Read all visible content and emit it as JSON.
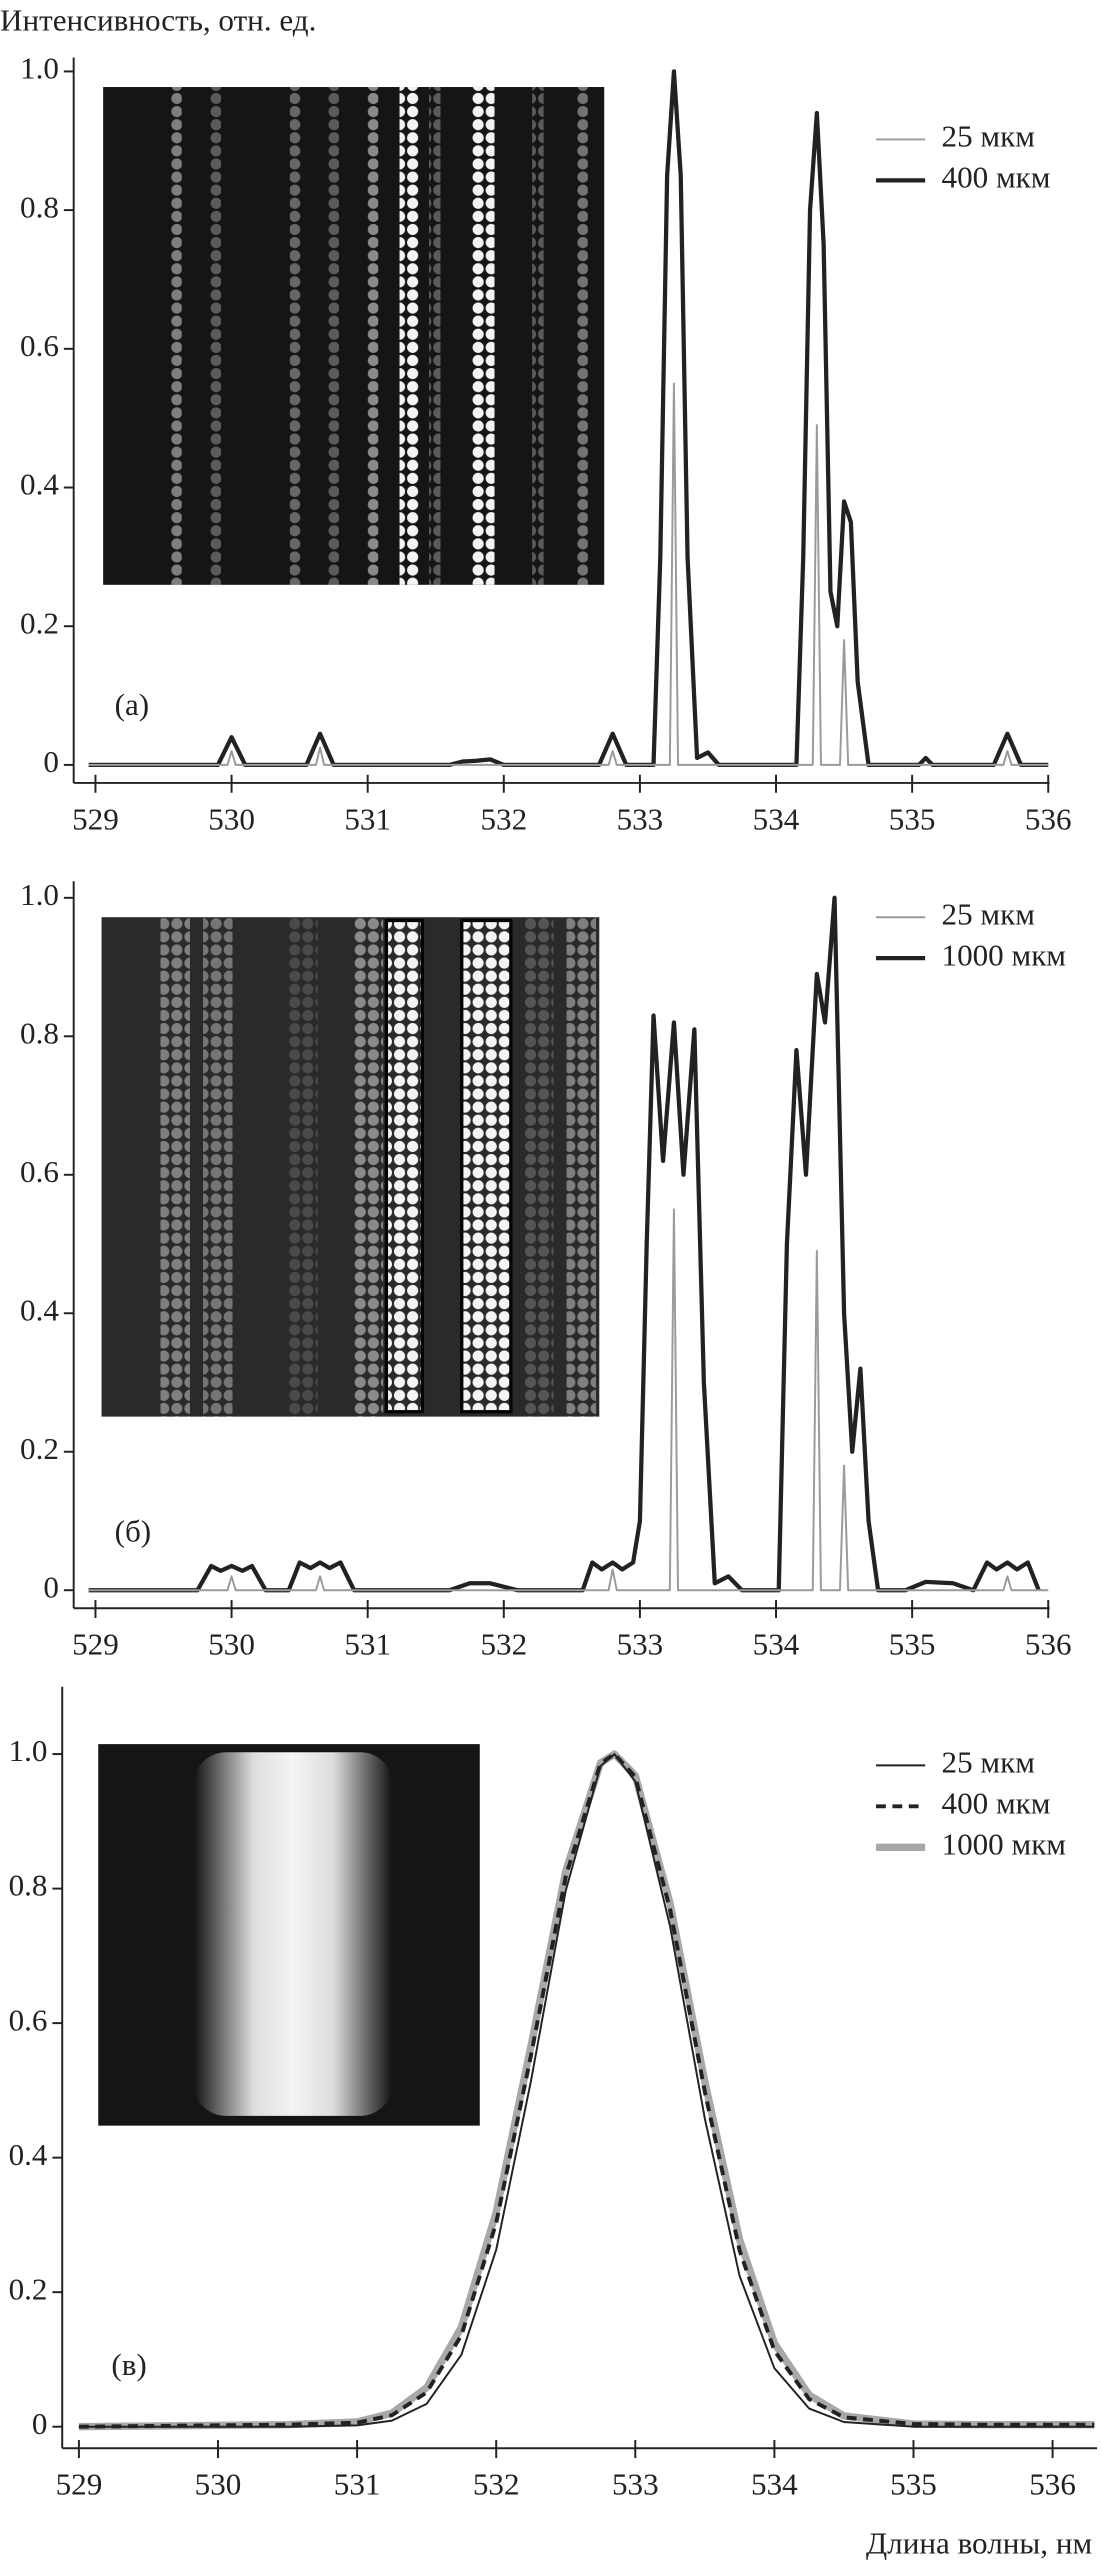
{
  "chart_data": [
    {
      "type": "line",
      "ylabel": "Интенсивность, отн. ед.",
      "annotation": "(a)",
      "legend": "upper right",
      "xlim": [
        528.84,
        536.01
      ],
      "ylim": [
        -0.026,
        1.02
      ],
      "xticks": [
        529,
        530,
        531,
        532,
        533,
        534,
        535,
        536
      ],
      "yticks": [
        0,
        0.2,
        0.4,
        0.6,
        0.8,
        {
          "value": 1,
          "label": "1.0"
        }
      ],
      "series": [
        {
          "name": "25 мкм",
          "color": "#9a9a9a",
          "width": 1.2,
          "x": [
            528.95,
            529.97,
            530.0,
            530.03,
            530.62,
            530.65,
            530.68,
            532.77,
            532.8,
            532.83,
            533.22,
            533.25,
            533.28,
            534.27,
            534.3,
            534.33,
            534.47,
            534.5,
            534.53,
            535.67,
            535.7,
            535.73,
            536.0
          ],
          "values": [
            0,
            0,
            0.02,
            0,
            0,
            0.025,
            0,
            0,
            0.02,
            0,
            0,
            0.55,
            0,
            0,
            0.49,
            0,
            0,
            0.18,
            0,
            0,
            0.02,
            0,
            0
          ]
        },
        {
          "name": "400 мкм",
          "color": "#222222",
          "width": 2.6,
          "x": [
            528.95,
            529.9,
            530.0,
            530.1,
            530.55,
            530.65,
            530.75,
            531.6,
            531.7,
            531.8,
            531.9,
            532.0,
            532.7,
            532.8,
            532.9,
            533.1,
            533.15,
            533.2,
            533.25,
            533.3,
            533.35,
            533.42,
            533.5,
            533.58,
            533.75,
            534.15,
            534.2,
            534.25,
            534.3,
            534.35,
            534.4,
            534.45,
            534.5,
            534.55,
            534.6,
            534.68,
            535.05,
            535.1,
            535.15,
            535.6,
            535.7,
            535.8,
            536.0
          ],
          "values": [
            0,
            0,
            0.04,
            0,
            0,
            0.045,
            0,
            0,
            0.005,
            0.006,
            0.008,
            0,
            0,
            0.045,
            0,
            0,
            0.3,
            0.85,
            1.0,
            0.85,
            0.3,
            0.01,
            0.018,
            0,
            0,
            0,
            0.3,
            0.8,
            0.94,
            0.75,
            0.25,
            0.2,
            0.38,
            0.35,
            0.12,
            0,
            0,
            0.01,
            0,
            0,
            0.045,
            0,
            0
          ]
        }
      ]
    },
    {
      "type": "line",
      "annotation": "(б)",
      "legend": "upper right",
      "xlim": [
        528.84,
        536.01
      ],
      "ylim": [
        -0.026,
        1.024
      ],
      "xticks": [
        529,
        530,
        531,
        532,
        533,
        534,
        535,
        536
      ],
      "yticks": [
        0,
        0.2,
        0.4,
        0.6,
        0.8,
        {
          "value": 1,
          "label": "1.0"
        }
      ],
      "series": [
        {
          "name": "25 мкм",
          "color": "#9a9a9a",
          "width": 1.2,
          "x": [
            528.95,
            529.97,
            530.0,
            530.03,
            530.62,
            530.65,
            530.68,
            532.77,
            532.8,
            532.83,
            533.22,
            533.25,
            533.28,
            534.27,
            534.3,
            534.33,
            534.47,
            534.5,
            534.53,
            535.67,
            535.7,
            535.73,
            536.0
          ],
          "values": [
            0,
            0,
            0.02,
            0,
            0,
            0.02,
            0,
            0,
            0.03,
            0,
            0,
            0.55,
            0,
            0,
            0.49,
            0,
            0,
            0.18,
            0,
            0,
            0.02,
            0,
            0
          ]
        },
        {
          "name": "1000 мкм",
          "color": "#222222",
          "width": 2.6,
          "x": [
            528.95,
            529.75,
            529.85,
            529.92,
            530.0,
            530.08,
            530.15,
            530.25,
            530.42,
            530.5,
            530.58,
            530.65,
            530.72,
            530.8,
            530.9,
            531.6,
            531.75,
            531.9,
            532.1,
            532.58,
            532.65,
            532.72,
            532.8,
            532.87,
            532.95,
            533.0,
            533.05,
            533.1,
            533.17,
            533.25,
            533.32,
            533.4,
            533.47,
            533.55,
            533.65,
            533.75,
            534.02,
            534.08,
            534.15,
            534.22,
            534.3,
            534.36,
            534.43,
            534.5,
            534.56,
            534.62,
            534.68,
            534.75,
            534.95,
            535.1,
            535.3,
            535.45,
            535.55,
            535.62,
            535.7,
            535.77,
            535.85,
            535.93
          ],
          "values": [
            0,
            0,
            0.035,
            0.028,
            0.035,
            0.028,
            0.035,
            0,
            0,
            0.04,
            0.032,
            0.04,
            0.032,
            0.04,
            0,
            0,
            0.01,
            0.01,
            0,
            0,
            0.04,
            0.03,
            0.04,
            0.03,
            0.04,
            0.1,
            0.5,
            0.83,
            0.62,
            0.82,
            0.6,
            0.81,
            0.3,
            0.01,
            0.02,
            0,
            0,
            0.5,
            0.78,
            0.6,
            0.89,
            0.82,
            1.0,
            0.4,
            0.2,
            0.32,
            0.1,
            0,
            0,
            0.012,
            0.01,
            0,
            0.04,
            0.03,
            0.04,
            0.03,
            0.04,
            0
          ]
        }
      ]
    },
    {
      "type": "line",
      "annotation": "(в)",
      "xlabel": "Длина волны, нм",
      "legend": "upper right",
      "xlim": [
        528.88,
        536.32
      ],
      "ylim": [
        -0.032,
        1.1
      ],
      "xticks": [
        529,
        530,
        531,
        532,
        533,
        534,
        535,
        536
      ],
      "yticks": [
        0,
        0.2,
        0.4,
        0.6,
        0.8,
        {
          "value": 1,
          "label": "1.0"
        }
      ],
      "series": [
        {
          "name": "25 мкм",
          "color": "#222222",
          "width": 1.2,
          "x": [
            529,
            529.5,
            530,
            530.5,
            531,
            531.25,
            531.5,
            531.75,
            532,
            532.25,
            532.5,
            532.75,
            532.85,
            533,
            533.25,
            533.5,
            533.75,
            534,
            534.25,
            534.5,
            535,
            535.5,
            536,
            536.3
          ],
          "values": [
            0,
            0,
            0,
            0,
            0.002,
            0.009,
            0.034,
            0.107,
            0.263,
            0.514,
            0.797,
            0.982,
            1.0,
            0.959,
            0.744,
            0.458,
            0.224,
            0.087,
            0.027,
            0.007,
            0,
            0,
            0,
            0
          ]
        },
        {
          "name": "400 мкм",
          "color": "#222222",
          "width": 2.4,
          "dash": true,
          "x": [
            529,
            529.5,
            530,
            530.5,
            531,
            531.25,
            531.5,
            531.75,
            532,
            532.25,
            532.5,
            532.75,
            532.85,
            533,
            533.25,
            533.5,
            533.75,
            534,
            534.25,
            534.5,
            535,
            535.5,
            536,
            536.3
          ],
          "values": [
            0,
            0.001,
            0.002,
            0.003,
            0.006,
            0.017,
            0.051,
            0.136,
            0.303,
            0.552,
            0.818,
            0.986,
            1.0,
            0.966,
            0.769,
            0.498,
            0.262,
            0.113,
            0.041,
            0.014,
            0.004,
            0.003,
            0.003,
            0.003
          ]
        },
        {
          "name": "1000 мкм",
          "color": "#a8a8a8",
          "width": 4.5,
          "x": [
            529,
            529.5,
            530,
            530.5,
            531,
            531.25,
            531.5,
            531.75,
            532,
            532.25,
            532.5,
            532.75,
            532.85,
            533,
            533.25,
            533.5,
            533.75,
            534,
            534.25,
            534.5,
            535,
            535.5,
            536,
            536.3
          ],
          "values": [
            0,
            0.001,
            0.002,
            0.003,
            0.007,
            0.02,
            0.058,
            0.148,
            0.319,
            0.566,
            0.826,
            0.987,
            1.0,
            0.968,
            0.778,
            0.513,
            0.278,
            0.124,
            0.047,
            0.016,
            0.004,
            0.003,
            0.003,
            0.003
          ]
        }
      ]
    }
  ]
}
